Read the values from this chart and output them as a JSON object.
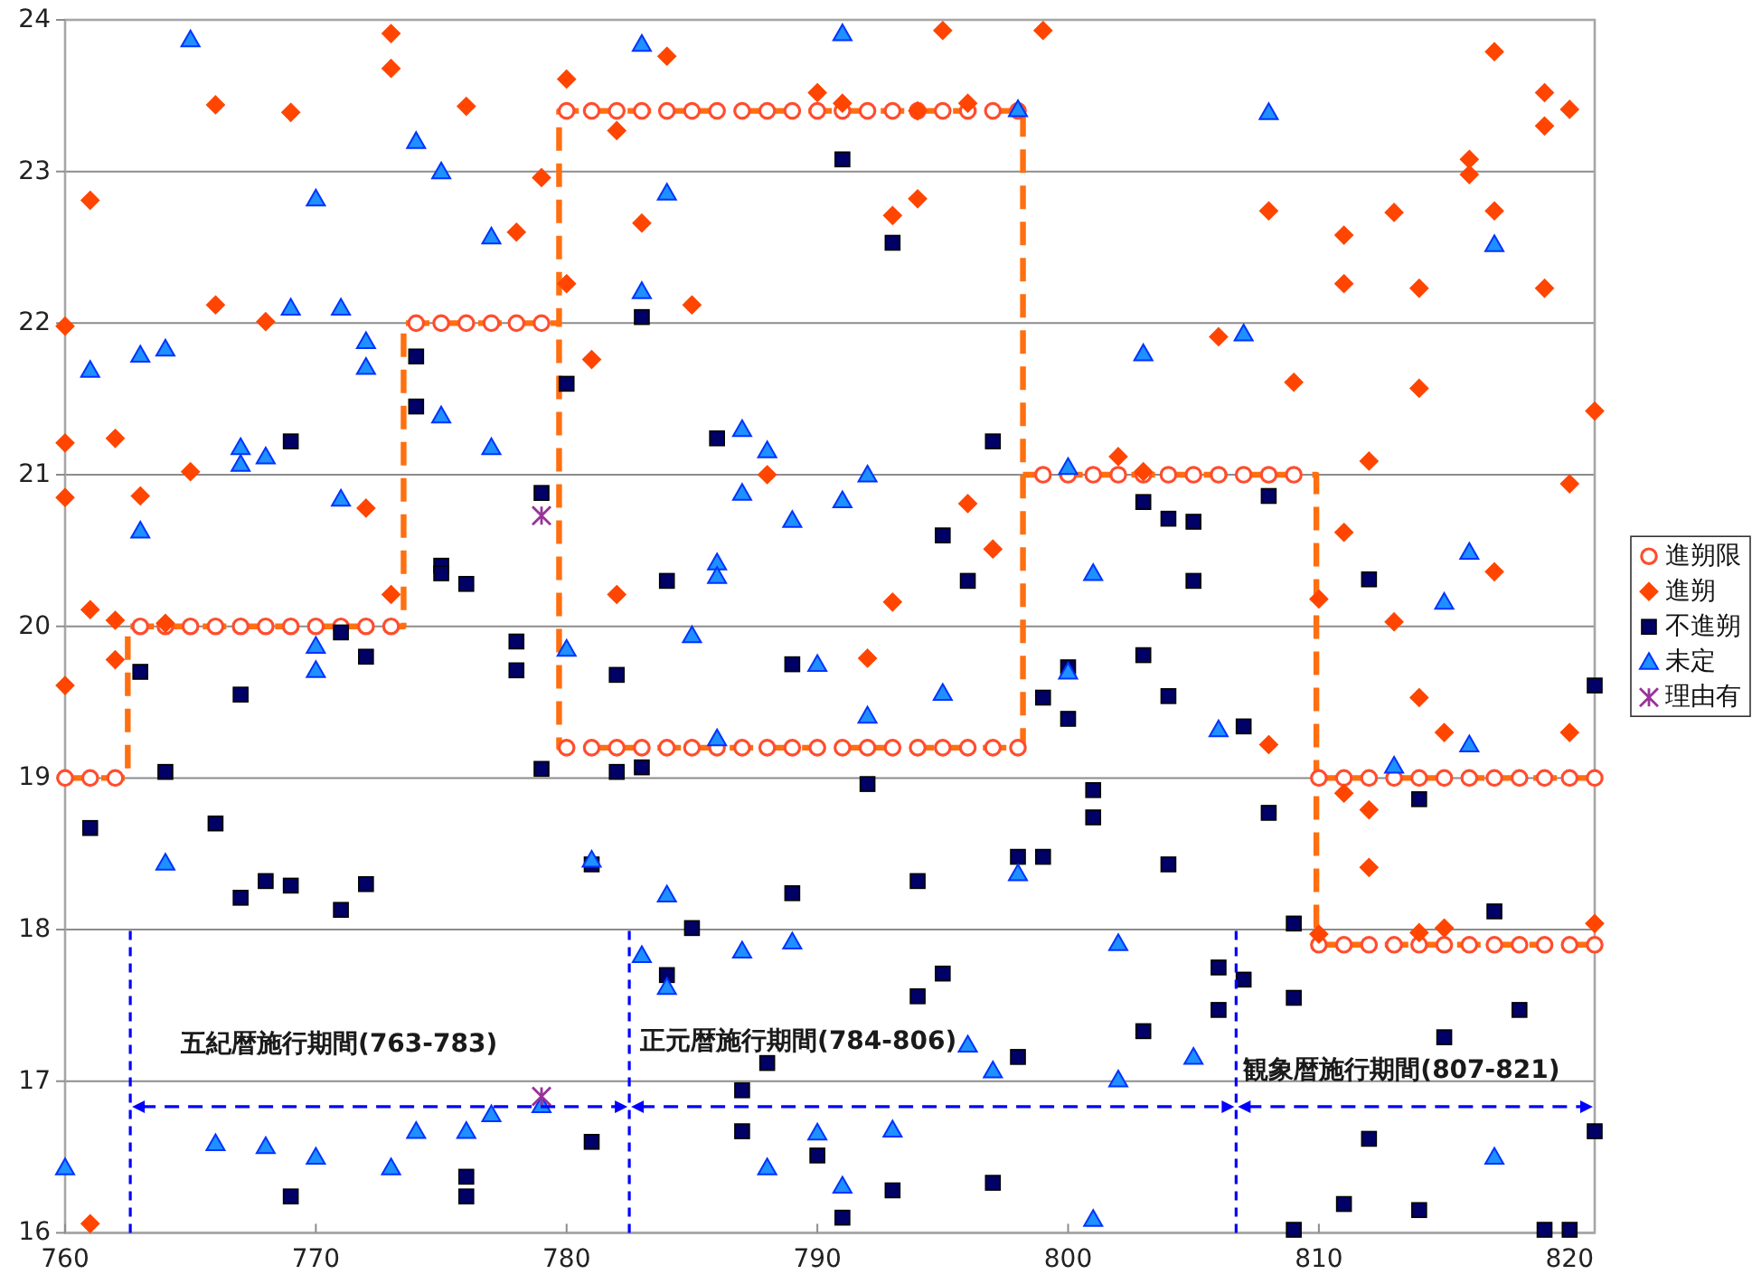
{
  "chart_data": {
    "type": "scatter",
    "xlim": [
      760,
      821
    ],
    "ylim": [
      16,
      24
    ],
    "xticks": [
      760,
      770,
      780,
      790,
      800,
      810,
      820
    ],
    "yticks": [
      16,
      17,
      18,
      19,
      20,
      21,
      22,
      23,
      24
    ],
    "grid": "y",
    "legend": "right",
    "series": [
      {
        "type": "line",
        "color": "#ff6f0f",
        "line_style": "dashed",
        "marker": "none",
        "x": [
          760,
          762.5,
          762.5,
          773.5,
          773.5,
          779.7,
          779.7,
          798.2,
          798.2,
          779.7,
          779.7,
          null,
          798.2,
          809.9,
          809.9,
          821,
          null,
          809.9,
          821
        ],
        "values": [
          19,
          19,
          20,
          20,
          22,
          22,
          23.4,
          23.4,
          19.2,
          19.2,
          22,
          null,
          21,
          21,
          17.9,
          17.9,
          null,
          19,
          19
        ]
      },
      {
        "name": "進朔限",
        "marker": "circle",
        "color": "#ff4d2e",
        "x": [
          760,
          761,
          762,
          763,
          764,
          765,
          766,
          767,
          768,
          769,
          770,
          771,
          772,
          773,
          774,
          775,
          776,
          777,
          778,
          779,
          780,
          781,
          782,
          783,
          784,
          785,
          786,
          787,
          788,
          789,
          790,
          791,
          792,
          793,
          794,
          795,
          796,
          797,
          798,
          780,
          781,
          782,
          783,
          784,
          785,
          786,
          787,
          788,
          789,
          790,
          791,
          792,
          793,
          794,
          795,
          796,
          797,
          798,
          799,
          800,
          801,
          802,
          803,
          804,
          805,
          806,
          807,
          808,
          809,
          810,
          811,
          812,
          813,
          814,
          815,
          816,
          817,
          818,
          819,
          820,
          821,
          810,
          811,
          812,
          813,
          814,
          815,
          816,
          817,
          818,
          819,
          820,
          821
        ],
        "values": [
          19,
          19,
          19,
          20,
          20,
          20,
          20,
          20,
          20,
          20,
          20,
          20,
          20,
          20,
          22,
          22,
          22,
          22,
          22,
          22,
          23.4,
          23.4,
          23.4,
          23.4,
          23.4,
          23.4,
          23.4,
          23.4,
          23.4,
          23.4,
          23.4,
          23.4,
          23.4,
          23.4,
          23.4,
          23.4,
          23.4,
          23.4,
          23.4,
          19.2,
          19.2,
          19.2,
          19.2,
          19.2,
          19.2,
          19.2,
          19.2,
          19.2,
          19.2,
          19.2,
          19.2,
          19.2,
          19.2,
          19.2,
          19.2,
          19.2,
          19.2,
          19.2,
          21,
          21,
          21,
          21,
          21,
          21,
          21,
          21,
          21,
          21,
          21,
          19,
          19,
          19,
          19,
          19,
          19,
          19,
          19,
          19,
          19,
          19,
          19,
          17.9,
          17.9,
          17.9,
          17.9,
          17.9,
          17.9,
          17.9,
          17.9,
          17.9,
          17.9,
          17.9,
          17.9
        ]
      },
      {
        "name": "進朔",
        "marker": "diamond",
        "color": "#ff4500",
        "x": [
          760,
          760,
          760,
          760,
          761,
          761,
          761,
          762,
          762,
          762,
          763,
          764,
          765,
          766,
          766,
          768,
          769,
          772,
          773,
          773,
          773,
          776,
          778,
          779,
          780,
          780,
          781,
          782,
          782,
          783,
          784,
          785,
          788,
          790,
          791,
          792,
          793,
          793,
          794,
          794,
          795,
          796,
          796,
          797,
          799,
          802,
          803,
          806,
          808,
          808,
          809,
          810,
          810,
          811,
          811,
          811,
          811,
          812,
          812,
          812,
          813,
          813,
          814,
          814,
          814,
          814,
          815,
          815,
          816,
          816,
          817,
          817,
          817,
          819,
          819,
          819,
          820,
          820,
          820,
          821,
          821
        ],
        "values": [
          21.98,
          21.21,
          20.85,
          19.61,
          22.81,
          20.11,
          16.06,
          21.24,
          20.04,
          19.78,
          20.86,
          20.02,
          21.02,
          23.44,
          22.12,
          22.01,
          23.39,
          20.78,
          23.91,
          23.68,
          20.21,
          23.43,
          22.6,
          22.96,
          23.61,
          22.26,
          21.76,
          23.27,
          20.21,
          22.66,
          23.76,
          22.12,
          21,
          23.52,
          23.45,
          19.79,
          22.71,
          20.16,
          23.4,
          22.82,
          23.93,
          23.45,
          20.81,
          20.51,
          23.93,
          21.12,
          21.02,
          21.91,
          22.74,
          19.22,
          21.61,
          20.18,
          17.97,
          22.58,
          22.26,
          20.62,
          18.9,
          21.09,
          18.79,
          18.41,
          22.73,
          20.03,
          22.23,
          21.57,
          19.53,
          17.98,
          19.3,
          18.01,
          23.08,
          22.98,
          23.79,
          22.74,
          20.36,
          23.52,
          23.3,
          22.23,
          23.41,
          20.94,
          19.3,
          21.42,
          18.04
        ]
      },
      {
        "name": "不進朔",
        "marker": "square",
        "color": "#000066",
        "x": [
          761,
          763,
          764,
          766,
          767,
          767,
          768,
          769,
          769,
          769,
          771,
          771,
          772,
          772,
          774,
          774,
          775,
          775,
          776,
          776,
          776,
          778,
          778,
          779,
          779,
          780,
          781,
          781,
          782,
          782,
          783,
          783,
          784,
          784,
          785,
          786,
          787,
          787,
          788,
          789,
          789,
          790,
          791,
          791,
          792,
          793,
          793,
          794,
          794,
          795,
          795,
          796,
          797,
          797,
          798,
          798,
          799,
          799,
          800,
          800,
          801,
          801,
          803,
          803,
          803,
          804,
          804,
          804,
          805,
          805,
          806,
          806,
          807,
          807,
          808,
          808,
          809,
          809,
          809,
          811,
          812,
          812,
          814,
          814,
          815,
          817,
          818,
          819,
          820,
          821,
          821
        ],
        "values": [
          18.67,
          19.7,
          19.04,
          18.7,
          19.55,
          18.21,
          18.32,
          21.22,
          18.29,
          16.24,
          19.96,
          18.13,
          19.8,
          18.3,
          21.78,
          21.45,
          20.4,
          20.35,
          20.28,
          16.37,
          16.24,
          19.9,
          19.71,
          20.88,
          19.06,
          21.6,
          18.43,
          16.6,
          19.68,
          19.04,
          22.04,
          19.07,
          20.3,
          17.7,
          18.01,
          21.24,
          16.94,
          16.67,
          17.12,
          19.75,
          18.24,
          16.51,
          23.08,
          16.1,
          18.96,
          22.53,
          16.28,
          18.32,
          17.56,
          20.6,
          17.71,
          20.3,
          21.22,
          16.33,
          18.48,
          17.16,
          19.53,
          18.48,
          19.73,
          19.39,
          18.92,
          18.74,
          20.82,
          19.81,
          17.33,
          20.71,
          19.54,
          18.43,
          20.69,
          20.3,
          17.75,
          17.47,
          19.34,
          17.67,
          20.86,
          18.77,
          18.04,
          17.55,
          16.02,
          16.19,
          20.31,
          16.62,
          18.86,
          16.15,
          17.29,
          18.12,
          17.47,
          16.02,
          16.02,
          19.61,
          16.67
        ]
      },
      {
        "name": "未定",
        "marker": "triangle",
        "color": "#1e90ff",
        "x": [
          760,
          761,
          763,
          763,
          764,
          764,
          765,
          766,
          767,
          767,
          768,
          768,
          769,
          770,
          770,
          770,
          770,
          771,
          771,
          772,
          772,
          773,
          774,
          774,
          775,
          775,
          776,
          777,
          777,
          777,
          779,
          780,
          781,
          783,
          783,
          783,
          784,
          784,
          784,
          785,
          786,
          786,
          786,
          787,
          787,
          787,
          788,
          788,
          789,
          789,
          790,
          790,
          791,
          791,
          791,
          792,
          792,
          793,
          795,
          796,
          797,
          798,
          798,
          800,
          800,
          801,
          801,
          802,
          802,
          803,
          805,
          806,
          807,
          808,
          813,
          815,
          816,
          816,
          817,
          817
        ],
        "values": [
          16.43,
          21.69,
          21.79,
          20.63,
          21.83,
          18.44,
          23.87,
          16.59,
          21.18,
          21.07,
          21.12,
          16.57,
          22.1,
          22.82,
          19.87,
          19.71,
          16.5,
          22.1,
          20.84,
          21.88,
          21.71,
          16.43,
          23.2,
          16.67,
          23,
          21.39,
          16.67,
          22.57,
          21.18,
          16.78,
          16.84,
          19.85,
          18.46,
          23.84,
          22.21,
          17.83,
          22.86,
          18.23,
          17.62,
          19.94,
          20.42,
          20.33,
          19.26,
          21.3,
          20.88,
          17.86,
          21.16,
          16.43,
          20.7,
          17.92,
          19.75,
          16.66,
          23.91,
          20.83,
          16.31,
          21,
          19.41,
          16.68,
          19.56,
          17.24,
          17.07,
          23.41,
          18.37,
          21.05,
          19.7,
          20.35,
          16.09,
          17.91,
          17.01,
          21.8,
          17.16,
          19.32,
          21.93,
          23.39,
          19.08,
          20.16,
          20.49,
          19.22,
          22.52,
          16.5
        ]
      },
      {
        "name": "理由有",
        "marker": "cross",
        "color": "#993399",
        "x": [
          779,
          779
        ],
        "values": [
          20.73,
          16.9
        ]
      }
    ],
    "ref_lines": [
      {
        "axis": "x",
        "value": 762.6,
        "color": "#0000ff",
        "line_style": "dashed"
      },
      {
        "axis": "x",
        "value": 782.5,
        "color": "#0000ff",
        "line_style": "dashed"
      },
      {
        "axis": "x",
        "value": 806.7,
        "color": "#0000ff",
        "line_style": "dashed"
      }
    ],
    "annotations": [
      "五紀暦施行期間(763-783)",
      "正元暦施行期間(784-806)",
      "観象暦施行期間(807-821)"
    ]
  }
}
